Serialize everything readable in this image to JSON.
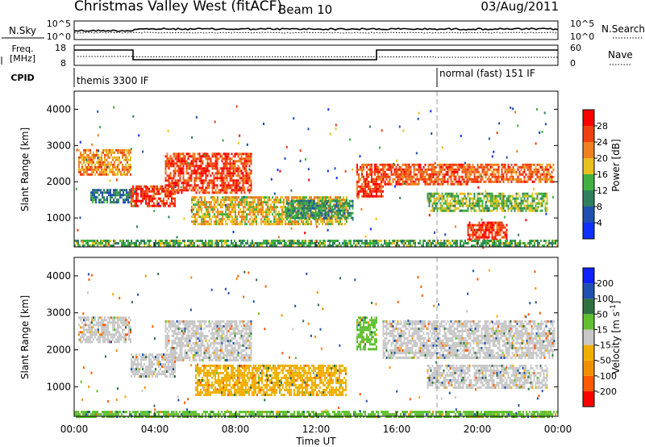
{
  "header": {
    "station": "Christmas Valley West (fitACF)",
    "beam": "Beam 10",
    "date": "03/Aug/2011"
  },
  "panels": {
    "nsky": {
      "label": "N.Sky",
      "tick_top": "10^5",
      "tick_bottom": "10^0",
      "right_label": "N.Search",
      "right_tick_top": "10^5",
      "right_tick_bottom": "10^0"
    },
    "freq": {
      "label_line1": "Freq.",
      "label_line2": "[MHz]",
      "tick_top": "18",
      "tick_bottom": "8",
      "right_label": "Nave",
      "right_tick_top": "60",
      "right_tick_bottom": "0"
    },
    "cpid": {
      "label": "CPID",
      "segments": [
        "themis 3300 IF",
        "normal (fast) 151 IF"
      ]
    }
  },
  "chart_data": [
    {
      "type": "heatmap",
      "title": "",
      "quantity": "Power",
      "ylabel": "Slant Range [km]",
      "xlabel": "",
      "xlim": [
        "00:00",
        "24:00"
      ],
      "ylim": [
        200,
        4500
      ],
      "yticks": [
        1000,
        2000,
        3000,
        4000
      ],
      "colorbar": {
        "label": "Power [dB]",
        "ticks": [
          4,
          8,
          12,
          16,
          20,
          24,
          28
        ],
        "range": [
          0,
          32
        ],
        "colors": [
          "#1030ff",
          "#2050b0",
          "#308060",
          "#40b040",
          "#e8c020",
          "#f08020",
          "#f04010",
          "#ff0000"
        ]
      },
      "bands": [
        {
          "t0": 0.2,
          "t1": 2.8,
          "r0": 2200,
          "r1": 2900,
          "value": 22
        },
        {
          "t0": 0.8,
          "t1": 3.0,
          "r0": 1400,
          "r1": 1800,
          "value": 10
        },
        {
          "t0": 2.8,
          "t1": 5.0,
          "r0": 1300,
          "r1": 1900,
          "value": 28
        },
        {
          "t0": 4.5,
          "t1": 8.8,
          "r0": 1700,
          "r1": 2800,
          "value": 27
        },
        {
          "t0": 5.8,
          "t1": 13.5,
          "r0": 800,
          "r1": 1600,
          "value": 20
        },
        {
          "t0": 10.5,
          "t1": 13.8,
          "r0": 1000,
          "r1": 1500,
          "value": 12
        },
        {
          "t0": 14.0,
          "t1": 15.3,
          "r0": 1600,
          "r1": 2500,
          "value": 27
        },
        {
          "t0": 15.3,
          "t1": 19.5,
          "r0": 1900,
          "r1": 2500,
          "value": 26
        },
        {
          "t0": 19.5,
          "t1": 23.8,
          "r0": 2000,
          "r1": 2500,
          "value": 25
        },
        {
          "t0": 17.5,
          "t1": 23.5,
          "r0": 1200,
          "r1": 1700,
          "value": 16
        },
        {
          "t0": 19.5,
          "t1": 21.5,
          "r0": 400,
          "r1": 900,
          "value": 28
        },
        {
          "t0": 0.0,
          "t1": 24.0,
          "r0": 200,
          "r1": 400,
          "value": 14
        }
      ]
    },
    {
      "type": "heatmap",
      "title": "",
      "quantity": "Velocity",
      "ylabel": "Slant Range [km]",
      "xlabel": "Time UT",
      "xlim": [
        "00:00",
        "24:00"
      ],
      "xticks": [
        "00:00",
        "04:00",
        "08:00",
        "12:00",
        "16:00",
        "20:00",
        "00:00"
      ],
      "ylim": [
        200,
        4500
      ],
      "yticks": [
        1000,
        2000,
        3000,
        4000
      ],
      "colorbar": {
        "label": "Velocity [m s-1]",
        "label_base": "Velocity [m s",
        "label_sup": "-1",
        "label_end": "]",
        "ticks": [
          -200,
          -100,
          -50,
          -15,
          15,
          50,
          100,
          200
        ],
        "colors": [
          "#ff0000",
          "#ff5a00",
          "#f09000",
          "#f0b000",
          "#c8c8c8",
          "#60c030",
          "#307040",
          "#2050b0",
          "#1020ff"
        ]
      },
      "bands": [
        {
          "t0": 0.2,
          "t1": 2.8,
          "r0": 2200,
          "r1": 2900,
          "value": 0
        },
        {
          "t0": 2.8,
          "t1": 5.0,
          "r0": 1300,
          "r1": 1900,
          "value": 0
        },
        {
          "t0": 4.5,
          "t1": 8.8,
          "r0": 1700,
          "r1": 2800,
          "value": 0
        },
        {
          "t0": 6.0,
          "t1": 13.5,
          "r0": 800,
          "r1": 1600,
          "value": -40
        },
        {
          "t0": 14.0,
          "t1": 15.0,
          "r0": 2000,
          "r1": 2900,
          "value": 40
        },
        {
          "t0": 15.3,
          "t1": 23.8,
          "r0": 1800,
          "r1": 2800,
          "value": 0
        },
        {
          "t0": 17.5,
          "t1": 23.5,
          "r0": 1000,
          "r1": 1600,
          "value": 0
        },
        {
          "t0": 0.0,
          "t1": 24.0,
          "r0": 200,
          "r1": 350,
          "value": 40
        }
      ]
    }
  ]
}
